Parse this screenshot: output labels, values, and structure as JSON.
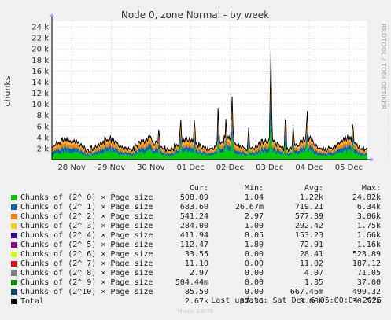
{
  "chart_data": {
    "type": "area",
    "stacked": true,
    "title": "Node 0, zone Normal - by week",
    "ylabel": "chunks",
    "side_label": "RRDTOOL / TOBI OETIKER",
    "ylim": [
      0,
      25000
    ],
    "yticks": [
      {
        "v": 2000,
        "label": "2 k"
      },
      {
        "v": 4000,
        "label": "4 k"
      },
      {
        "v": 6000,
        "label": "6 k"
      },
      {
        "v": 8000,
        "label": "8 k"
      },
      {
        "v": 10000,
        "label": "10 k"
      },
      {
        "v": 12000,
        "label": "12 k"
      },
      {
        "v": 14000,
        "label": "14 k"
      },
      {
        "v": 16000,
        "label": "16 k"
      },
      {
        "v": 18000,
        "label": "18 k"
      },
      {
        "v": 20000,
        "label": "20 k"
      },
      {
        "v": 22000,
        "label": "22 k"
      },
      {
        "v": 24000,
        "label": "24 k"
      }
    ],
    "x_ticks": [
      "28 Nov",
      "29 Nov",
      "30 Nov",
      "01 Dec",
      "02 Dec",
      "03 Dec",
      "04 Dec",
      "05 Dec"
    ],
    "xlim_days": [
      0,
      7.97
    ],
    "grid": true,
    "spikes": [
      {
        "day": 5.53,
        "total": 20000
      },
      {
        "day": 4.2,
        "total": 10500
      },
      {
        "day": 4.55,
        "total": 11500
      },
      {
        "day": 3.6,
        "total": 8200
      },
      {
        "day": 5.9,
        "total": 9800
      },
      {
        "day": 6.45,
        "total": 8500
      },
      {
        "day": 3.25,
        "total": 7200
      },
      {
        "day": 4.97,
        "total": 7200
      },
      {
        "day": 6.1,
        "total": 6500
      },
      {
        "day": 7.6,
        "total": 6300
      },
      {
        "day": 2.7,
        "total": 6200
      },
      {
        "day": 4.4,
        "total": 6000
      }
    ]
  },
  "legend": {
    "headers": {
      "cur": "Cur:",
      "min": "Min:",
      "avg": "Avg:",
      "max": "Max:"
    },
    "series": [
      {
        "name": "Chunks of (2^ 0) × Page size",
        "color": "#00cc00",
        "cur": "508.09",
        "min": "1.04",
        "avg": "1.22k",
        "max": "24.82k"
      },
      {
        "name": "Chunks of (2^ 1) × Page size",
        "color": "#0066b3",
        "cur": "683.60",
        "min": "26.67m",
        "avg": "719.21",
        "max": "6.34k"
      },
      {
        "name": "Chunks of (2^ 2) × Page size",
        "color": "#ff8000",
        "cur": "541.24",
        "min": "2.97",
        "avg": "577.39",
        "max": "3.06k"
      },
      {
        "name": "Chunks of (2^ 3) × Page size",
        "color": "#ffcc00",
        "cur": "284.00",
        "min": "1.00",
        "avg": "292.42",
        "max": "1.75k"
      },
      {
        "name": "Chunks of (2^ 4) × Page size",
        "color": "#330099",
        "cur": "411.94",
        "min": "8.05",
        "avg": "153.23",
        "max": "1.66k"
      },
      {
        "name": "Chunks of (2^ 5) × Page size",
        "color": "#990099",
        "cur": "112.47",
        "min": "1.80",
        "avg": "72.91",
        "max": "1.16k"
      },
      {
        "name": "Chunks of (2^ 6) × Page size",
        "color": "#ccff00",
        "cur": "33.55",
        "min": "0.00",
        "avg": "28.41",
        "max": "523.89"
      },
      {
        "name": "Chunks of (2^ 7) × Page size",
        "color": "#ff0000",
        "cur": "11.10",
        "min": "0.00",
        "avg": "11.02",
        "max": "187.12"
      },
      {
        "name": "Chunks of (2^ 8) × Page size",
        "color": "#808080",
        "cur": "2.97",
        "min": "0.00",
        "avg": "4.07",
        "max": "71.05"
      },
      {
        "name": "Chunks of (2^ 9) × Page size",
        "color": "#008f00",
        "cur": "504.44m",
        "min": "0.00",
        "avg": "1.35",
        "max": "37.00"
      },
      {
        "name": "Chunks of (2^10) × Page size",
        "color": "#00487d",
        "cur": "85.50",
        "min": "0.00",
        "avg": "667.46m",
        "max": "499.32"
      },
      {
        "name": "Total",
        "color": "#000000",
        "cur": "2.67k",
        "min": "37.36",
        "avg": "3.08k",
        "max": "30.52k"
      }
    ]
  },
  "footer": {
    "last_update": "Last update: Sat Dec  6 05:00:04 2025",
    "munin": "Munin 2.0.76"
  }
}
